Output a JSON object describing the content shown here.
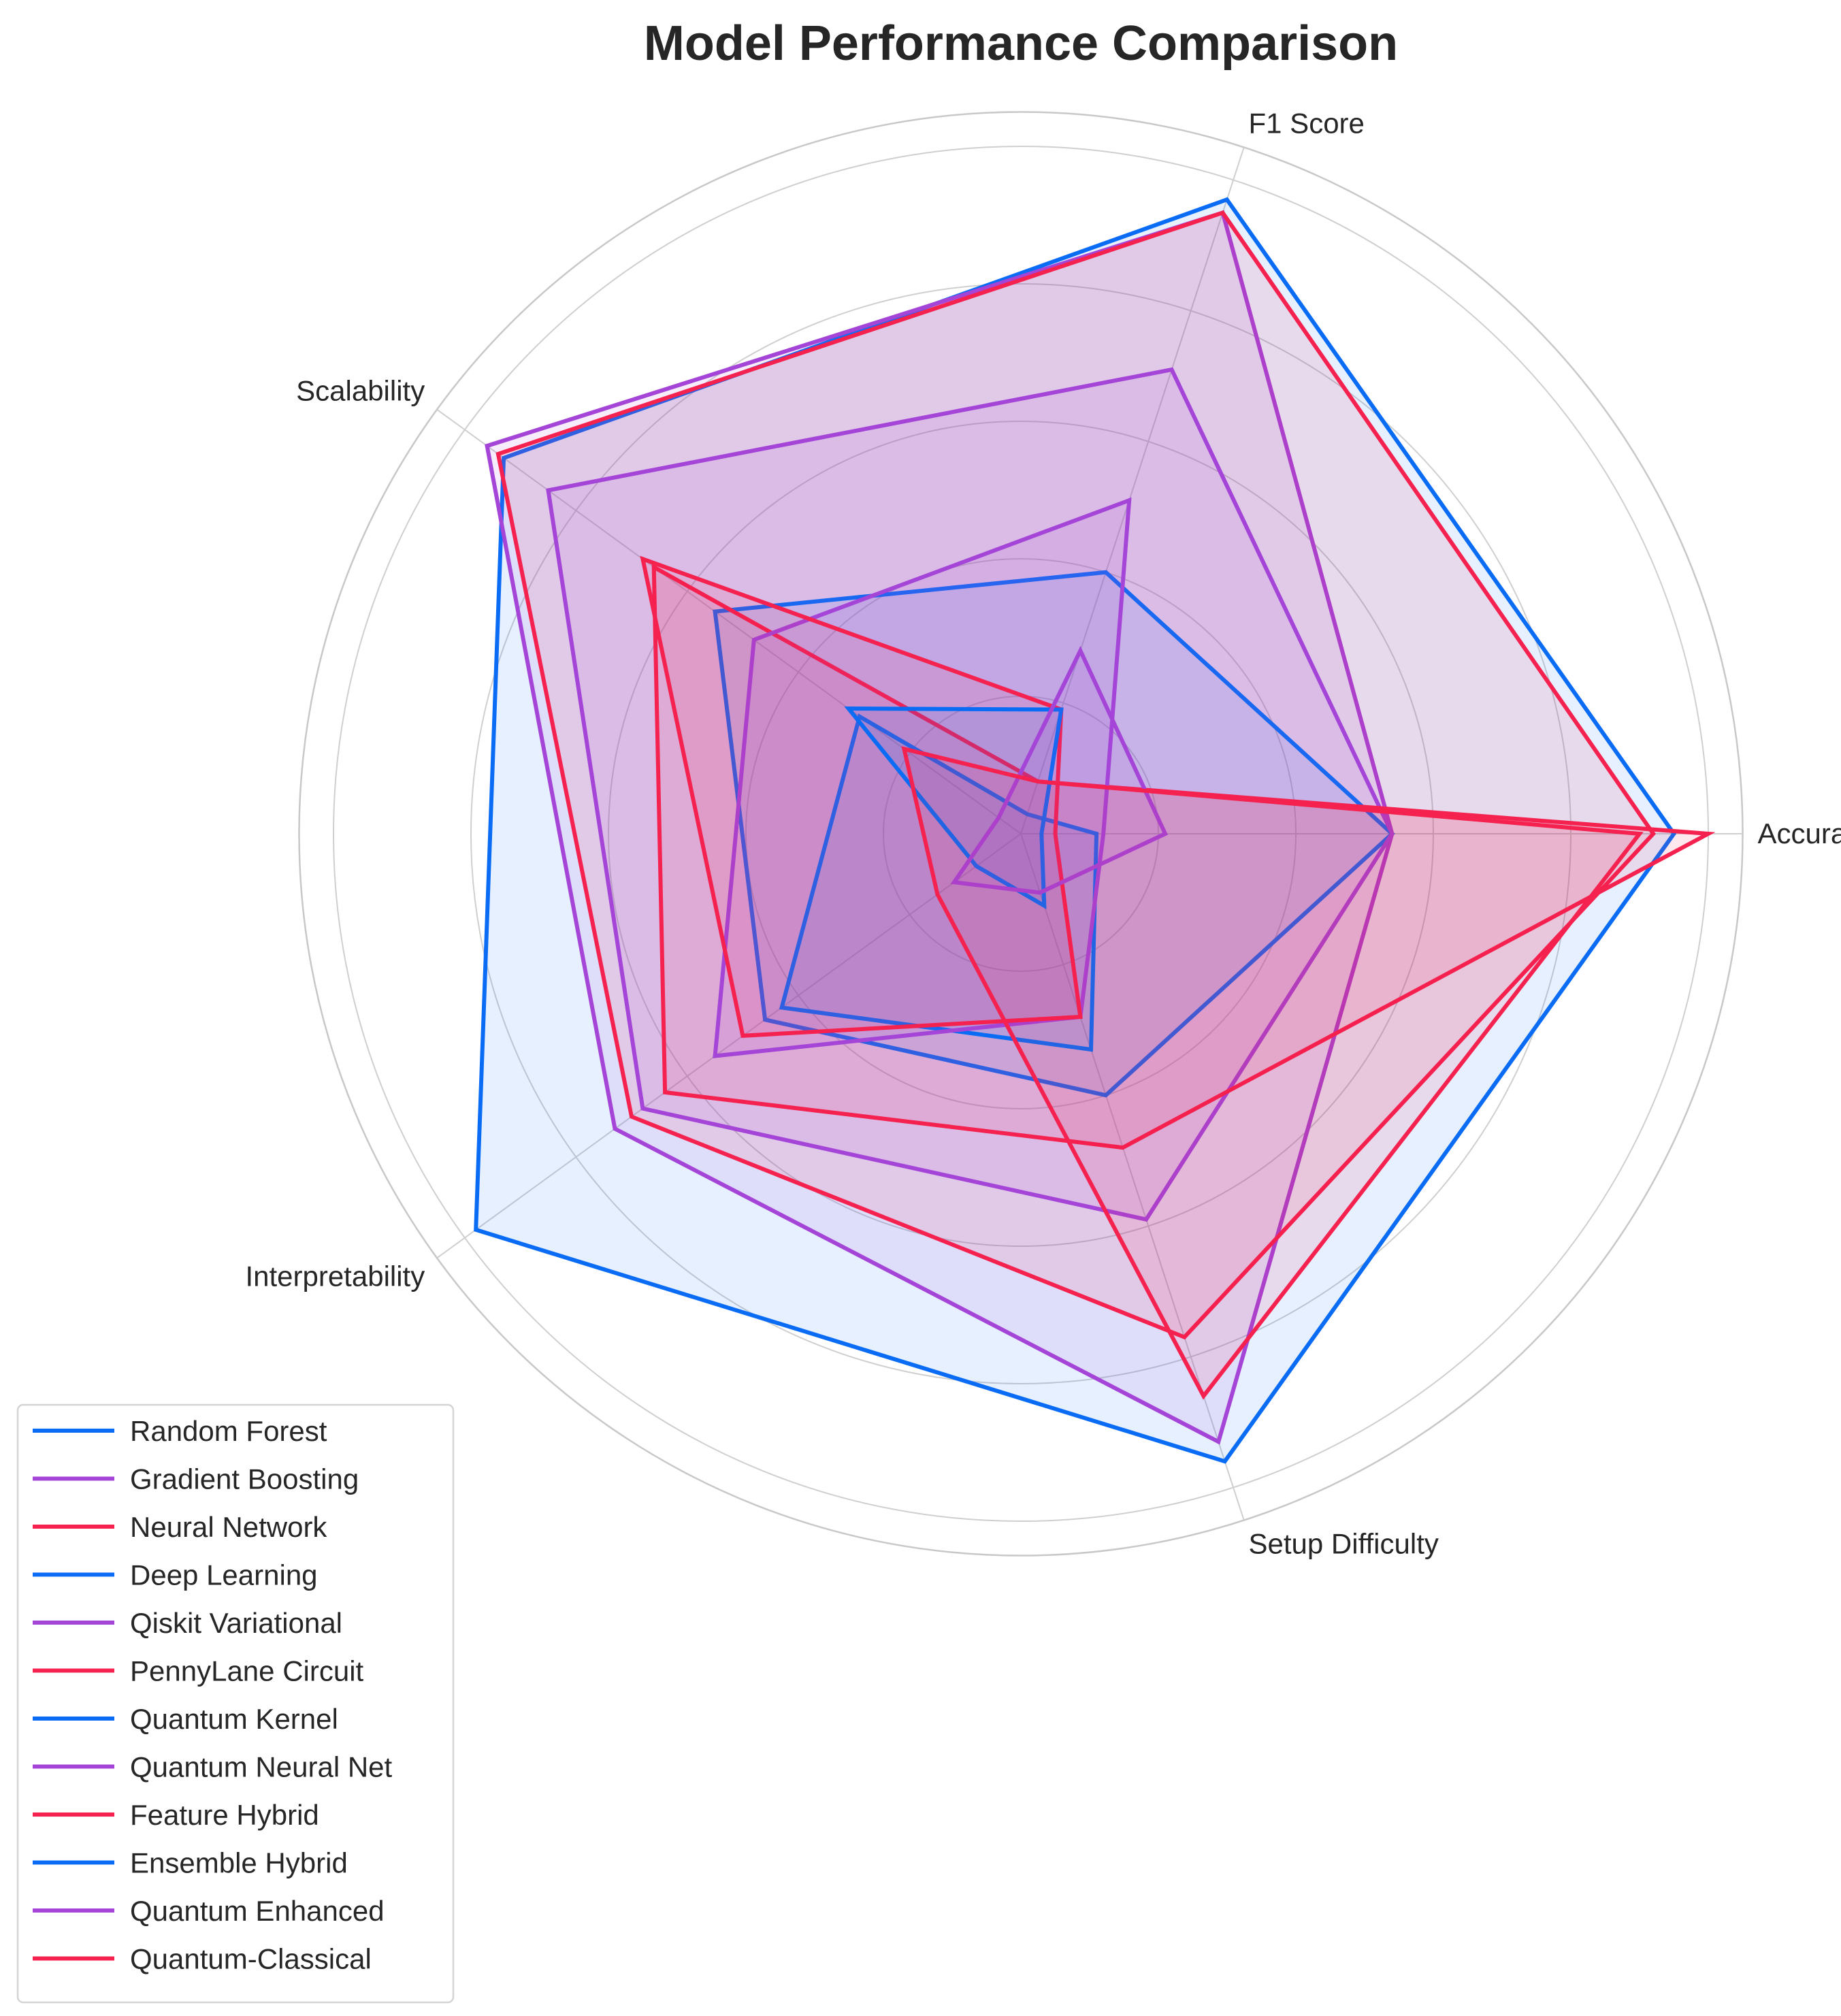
{
  "chart_data": {
    "type": "radar",
    "title": "Model Performance Comparison",
    "axes": [
      "Accuracy",
      "F1 Score",
      "Scalability",
      "Interpretability",
      "Setup Difficulty"
    ],
    "rlim": [
      0,
      1
    ],
    "grid": true,
    "legend_position": "lower-left",
    "palette": [
      "#0a6cf5",
      "#a445d8",
      "#f5214f"
    ],
    "series": [
      {
        "name": "Random Forest",
        "values": [
          0.95,
          0.97,
          0.93,
          0.98,
          0.96
        ]
      },
      {
        "name": "Gradient Boosting",
        "values": [
          0.54,
          0.95,
          0.96,
          0.73,
          0.93
        ]
      },
      {
        "name": "Neural Network",
        "values": [
          0.92,
          0.95,
          0.94,
          0.7,
          0.77
        ]
      },
      {
        "name": "Deep Learning",
        "values": [
          0.54,
          0.4,
          0.55,
          0.46,
          0.4
        ]
      },
      {
        "name": "Qiskit Variational",
        "values": [
          0.54,
          0.71,
          0.85,
          0.68,
          0.59
        ]
      },
      {
        "name": "PennyLane Circuit",
        "values": [
          1.0,
          0.08,
          0.66,
          0.64,
          0.48
        ]
      },
      {
        "name": "Quantum Kernel",
        "values": [
          0.11,
          0.03,
          0.29,
          0.43,
          0.33
        ]
      },
      {
        "name": "Quantum Neural Net",
        "values": [
          0.12,
          0.51,
          0.48,
          0.55,
          0.28
        ]
      },
      {
        "name": "Feature Hybrid",
        "values": [
          0.05,
          0.19,
          0.68,
          0.5,
          0.28
        ]
      },
      {
        "name": "Ensemble Hybrid",
        "values": [
          0.03,
          0.19,
          0.31,
          0.08,
          0.11
        ]
      },
      {
        "name": "Quantum Enhanced",
        "values": [
          0.21,
          0.28,
          0.04,
          0.12,
          0.09
        ]
      },
      {
        "name": "Quantum-Classical",
        "values": [
          0.9,
          0.08,
          0.21,
          0.15,
          0.86
        ]
      }
    ]
  }
}
